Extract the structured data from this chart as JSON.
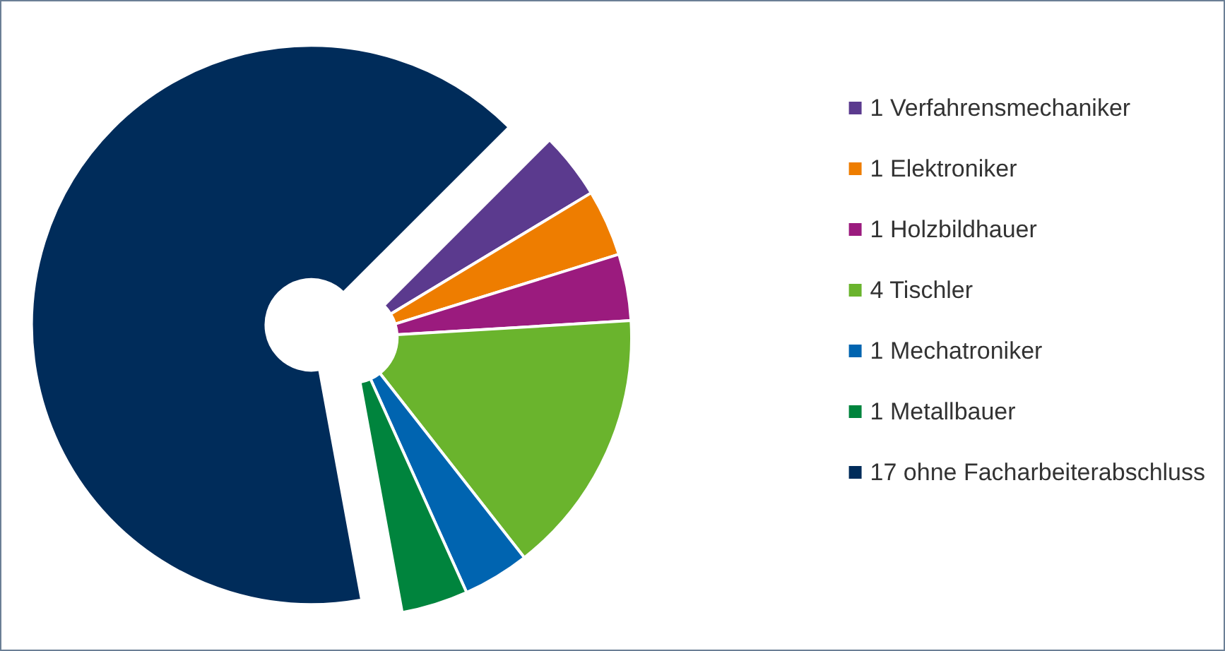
{
  "chart_data": {
    "type": "donut",
    "categories": [
      "1 Verfahrensmechaniker",
      "1 Elektroniker",
      "1 Holzbildhauer",
      "4 Tischler",
      "1 Mechatroniker",
      "1 Metallbauer",
      "17 ohne Facharbeiterabschluss"
    ],
    "values": [
      1,
      1,
      1,
      4,
      1,
      1,
      17
    ],
    "colors": [
      "#5b3a8e",
      "#ee7d00",
      "#9b1b7e",
      "#6ab42d",
      "#0064b0",
      "#00843d",
      "#002c5a"
    ],
    "legend": "right"
  }
}
